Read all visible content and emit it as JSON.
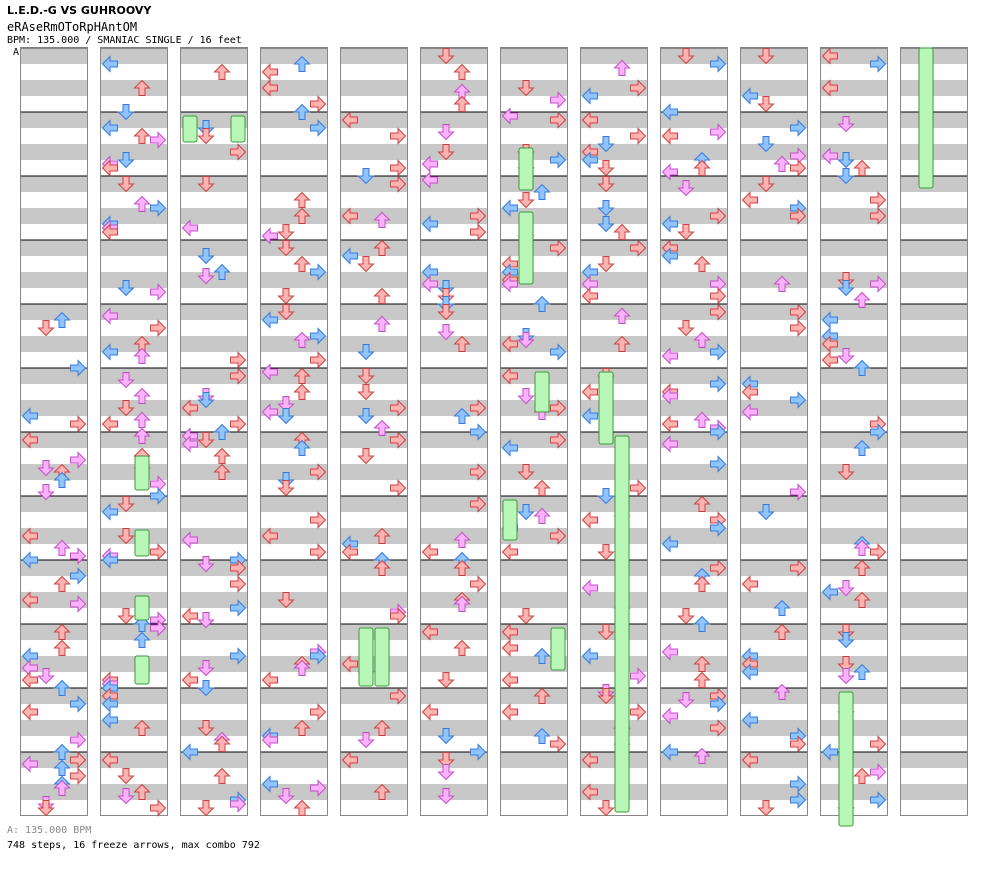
{
  "header": {
    "title": "L.E.D.-G VS GUHROOVY",
    "subtitle": "eRAseRmOToRpHAntOM",
    "info": "BPM: 135.000 / SMANIAC SINGLE / 16 feet",
    "bpm_marker": "A"
  },
  "footer": {
    "bpm_legend": "A: 135.000 BPM",
    "stats": "748 steps, 16 freeze arrows, max combo 792"
  },
  "chart_data": {
    "type": "step-chart",
    "columns": 12,
    "measures_per_column": 12,
    "lanes": [
      "left",
      "down",
      "up",
      "right"
    ],
    "steps": 748,
    "freeze_arrows": 16,
    "max_combo": 792,
    "colors": {
      "quarter": "#ffb3b3",
      "quarter_stroke": "#d04040",
      "eighth": "#8fc4ff",
      "eighth_stroke": "#3a7ad8",
      "sixteenth": "#ffb0ff",
      "sixteenth_stroke": "#c050c0",
      "freeze": "#b9f7b9",
      "freeze_stroke": "#3a9a3a",
      "stripe": "#c8c8c8"
    }
  }
}
